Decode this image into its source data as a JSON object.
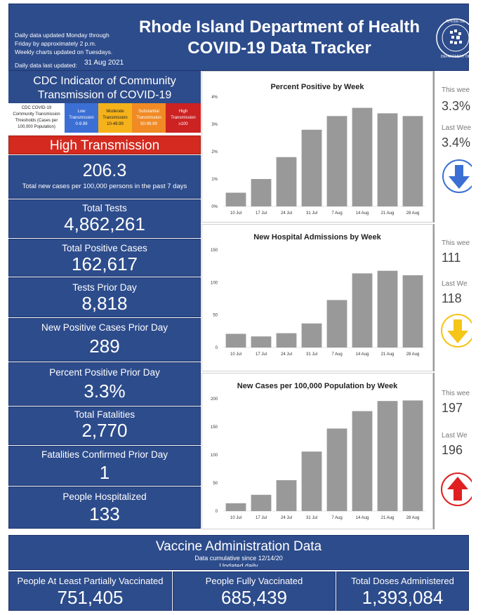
{
  "header": {
    "notes": [
      "Daily data updated Monday through",
      "Friday by approximately 2 p.m.",
      "Weekly charts updated on Tuesdays."
    ],
    "last_updated_label": "Daily data last updated:",
    "last_updated_date": "31 Aug 2021",
    "title_line1": "Rhode Island Department of Health",
    "title_line2": "COVID-19 Data Tracker",
    "seal_text_top": "RHODE ISL",
    "seal_text_bottom": "DEPARTMENT OF"
  },
  "cdc": {
    "title_line1": "CDC Indicator of Community",
    "title_line2": "Transmission of COVID-19",
    "threshold_label": [
      "CDC COVID-19",
      "Community Transmission",
      "Thresholds (Cases per",
      "100,000 Population)"
    ],
    "levels": [
      {
        "name": "Low",
        "name2": "Transmission",
        "range": "0-9.99"
      },
      {
        "name": "Moderate",
        "name2": "Transmission",
        "range": "10-49.99"
      },
      {
        "name": "Substantial",
        "name2": "Transmission",
        "range": "50-99.99"
      },
      {
        "name": "High",
        "name2": "Transmission",
        "range": "≥100"
      }
    ],
    "current_level": "High Transmission",
    "rate_value": "206.3",
    "rate_label": "Total new cases per 100,000 persons in the past 7 days"
  },
  "stats": [
    {
      "label": "Total Tests",
      "value": "4,862,261"
    },
    {
      "label": "Total Positive Cases",
      "value": "162,617"
    },
    {
      "label": "Tests Prior Day",
      "value": "8,818"
    },
    {
      "label": "New Positive Cases Prior Day",
      "value": "289"
    },
    {
      "label": "Percent Positive Prior Day",
      "value": "3.3%"
    },
    {
      "label": "Total Fatalities",
      "value": "2,770"
    },
    {
      "label": "Fatalities Confirmed Prior Day",
      "value": "1"
    },
    {
      "label": "People Hospitalized",
      "value": "133"
    }
  ],
  "comparisons": [
    {
      "this_label": "This wee",
      "this_value": "3.3%",
      "last_label": "Last Wee",
      "last_value": "3.4%",
      "arrow": "down",
      "arrow_color": "#3b6fd4"
    },
    {
      "this_label": "This wee",
      "this_value": "111",
      "last_label": "Last We",
      "last_value": "118",
      "arrow": "down",
      "arrow_color": "#f5c518"
    },
    {
      "this_label": "This wee",
      "this_value": "197",
      "last_label": "Last We",
      "last_value": "196",
      "arrow": "up",
      "arrow_color": "#e02020"
    }
  ],
  "colors": {
    "navy": "#2d4c8c",
    "bar": "#999999",
    "high": "#d42a1f"
  },
  "chart_data": [
    {
      "type": "bar",
      "title": "Percent Positive by Week",
      "categories": [
        "10 Jul",
        "17 Jul",
        "24 Jul",
        "31 Jul",
        "7 Aug",
        "14 Aug",
        "21 Aug",
        "28 Aug"
      ],
      "values": [
        0.5,
        1.0,
        1.8,
        2.8,
        3.3,
        3.6,
        3.4,
        3.3
      ],
      "yticks": [
        "0%",
        "1%",
        "2%",
        "3%",
        "4%"
      ],
      "ylim": [
        0,
        4
      ]
    },
    {
      "type": "bar",
      "title": "New Hospital Admissions by Week",
      "categories": [
        "10 Jul",
        "17 Jul",
        "24 Jul",
        "31 Jul",
        "7 Aug",
        "14 Aug",
        "21 Aug",
        "28 Aug"
      ],
      "values": [
        21,
        17,
        22,
        37,
        73,
        114,
        118,
        111
      ],
      "yticks": [
        "0",
        "50",
        "100",
        "150"
      ],
      "ylim": [
        0,
        150
      ]
    },
    {
      "type": "bar",
      "title": "New Cases per 100,000 Population by Week",
      "categories": [
        "10 Jul",
        "17 Jul",
        "24 Jul",
        "31 Jul",
        "7 Aug",
        "14 Aug",
        "21 Aug",
        "28 Aug"
      ],
      "values": [
        14,
        29,
        55,
        106,
        147,
        178,
        196,
        197
      ],
      "yticks": [
        "0",
        "50",
        "100",
        "150",
        "200"
      ],
      "ylim": [
        0,
        200
      ]
    }
  ],
  "vaccine": {
    "title": "Vaccine Administration Data",
    "sub1": "Data cumulative since 12/14/20",
    "sub2": "Updated daily",
    "items": [
      {
        "label": "People At Least Partially Vaccinated",
        "value": "751,405"
      },
      {
        "label": "People Fully Vaccinated",
        "value": "685,439"
      },
      {
        "label": "Total Doses Administered",
        "value": "1,393,084"
      }
    ]
  }
}
